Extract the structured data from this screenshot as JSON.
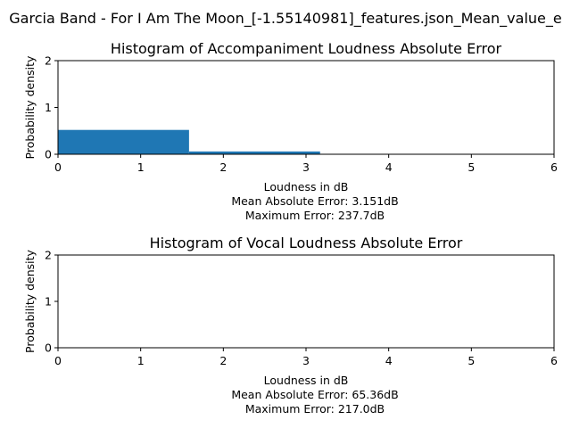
{
  "suptitle": "Garcia Band - For I Am The Moon_[-1.55140981]_features.json_Mean_value_e",
  "chart_data": [
    {
      "type": "bar",
      "title": "Histogram of Accompaniment Loudness Absolute Error",
      "xlabel": "Loudness in dB",
      "xlabel_lines": [
        "Mean Absolute Error: 3.151dB",
        "Maximum Error: 237.7dB"
      ],
      "ylabel": "Probability density",
      "xlim": [
        0,
        6
      ],
      "ylim": [
        0,
        2
      ],
      "xticks": [
        "0",
        "1",
        "2",
        "3",
        "4",
        "5",
        "6"
      ],
      "yticks": [
        "0",
        "1",
        "2"
      ],
      "bins": [
        {
          "start": 0,
          "end": 1.585,
          "value": 0.52
        },
        {
          "start": 1.585,
          "end": 3.17,
          "value": 0.06
        }
      ],
      "color": "#1f77b4"
    },
    {
      "type": "bar",
      "title": "Histogram of Vocal Loudness Absolute Error",
      "xlabel": "Loudness in dB",
      "xlabel_lines": [
        "Mean Absolute Error: 65.36dB",
        "Maximum Error: 217.0dB"
      ],
      "ylabel": "Probability density",
      "xlim": [
        0,
        6
      ],
      "ylim": [
        0,
        2
      ],
      "xticks": [
        "0",
        "1",
        "2",
        "3",
        "4",
        "5",
        "6"
      ],
      "yticks": [
        "0",
        "1",
        "2"
      ],
      "bins": [],
      "color": "#1f77b4"
    }
  ]
}
